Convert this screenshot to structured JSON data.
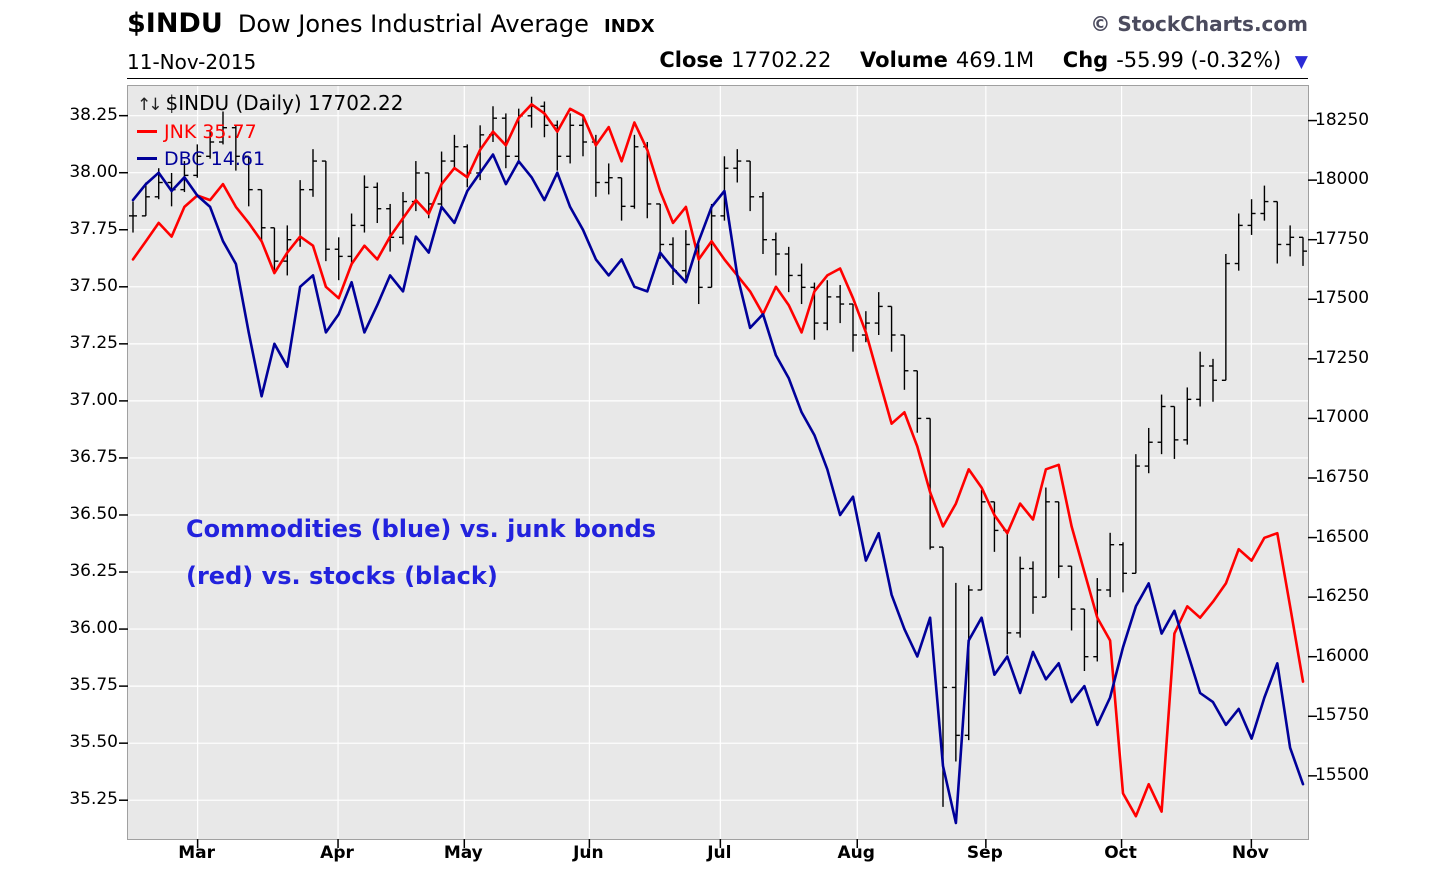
{
  "header": {
    "symbol": "$INDU",
    "name": "Dow Jones Industrial Average",
    "exchange": "INDX",
    "watermark": "© StockCharts.com",
    "date": "11-Nov-2015",
    "close_label": "Close",
    "close_value": "17702.22",
    "volume_label": "Volume",
    "volume_value": "469.1M",
    "chg_label": "Chg",
    "chg_value": "-55.99 (-0.32%)",
    "chg_direction": "down"
  },
  "legend": {
    "scale_icon": "↑↓",
    "main": "$INDU (Daily) 17702.22",
    "items": [
      {
        "label": "JNK 35.77",
        "color": "#ff0000"
      },
      {
        "label": "DBC 14.61",
        "color": "#000099"
      }
    ]
  },
  "annotation": {
    "line1": "Commodities (blue) vs. junk bonds",
    "line2": "(red) vs. stocks (black)",
    "color": "#2222dd"
  },
  "colors": {
    "indu_bars": "#000000",
    "jnk_line": "#ff0000",
    "dbc_line": "#000099",
    "plot_background": "#e8e8e8",
    "gridline": "#ffffff",
    "chg_arrow": "#2b2bd6"
  },
  "chart_data": {
    "type": "mixed",
    "title": "$INDU (Daily) — Dow Jones Industrial Average with JNK and DBC overlays",
    "grid": true,
    "x_axis": {
      "labels": [
        "Mar",
        "Apr",
        "May",
        "Jun",
        "Jul",
        "Aug",
        "Sep",
        "Oct",
        "Nov"
      ],
      "fractions": [
        0.059,
        0.178,
        0.285,
        0.391,
        0.502,
        0.618,
        0.727,
        0.842,
        0.952
      ]
    },
    "left_axis": {
      "ticks": [
        38.25,
        38.0,
        37.75,
        37.5,
        37.25,
        37.0,
        36.75,
        36.5,
        36.25,
        36.0,
        35.75,
        35.5,
        35.25
      ],
      "range": [
        35.08,
        38.38
      ],
      "series": [
        "JNK",
        "DBC"
      ]
    },
    "right_axis": {
      "ticks": [
        18250,
        18000,
        17750,
        17500,
        17250,
        17000,
        16750,
        16500,
        16250,
        16000,
        15750,
        15500
      ],
      "range": [
        15235,
        18395
      ],
      "series": [
        "$INDU"
      ]
    },
    "series": [
      {
        "name": "$INDU",
        "type": "ohlc",
        "axis": "right",
        "color": "#000000",
        "note": "bars are [high, low, close]; open drawn as prior close",
        "bars": [
          [
            17910,
            17780,
            17850
          ],
          [
            17990,
            17870,
            17930
          ],
          [
            18050,
            17920,
            17990
          ],
          [
            18030,
            17890,
            17960
          ],
          [
            18080,
            17950,
            18020
          ],
          [
            18150,
            18010,
            18100
          ],
          [
            18210,
            18090,
            18160
          ],
          [
            18288,
            18150,
            18220
          ],
          [
            18230,
            18040,
            18100
          ],
          [
            18050,
            17890,
            17960
          ],
          [
            17950,
            17740,
            17800
          ],
          [
            17790,
            17620,
            17660
          ],
          [
            17810,
            17600,
            17750
          ],
          [
            18000,
            17720,
            17960
          ],
          [
            18130,
            17930,
            18080
          ],
          [
            18050,
            17660,
            17710
          ],
          [
            17760,
            17580,
            17680
          ],
          [
            17860,
            17640,
            17810
          ],
          [
            18020,
            17780,
            17970
          ],
          [
            17990,
            17820,
            17880
          ],
          [
            17900,
            17700,
            17760
          ],
          [
            17950,
            17730,
            17910
          ],
          [
            18080,
            17870,
            18030
          ],
          [
            18000,
            17840,
            17900
          ],
          [
            18120,
            17880,
            18080
          ],
          [
            18190,
            18050,
            18140
          ],
          [
            18150,
            17970,
            18030
          ],
          [
            18230,
            18000,
            18190
          ],
          [
            18310,
            18160,
            18260
          ],
          [
            18280,
            18050,
            18100
          ],
          [
            18300,
            18080,
            18270
          ],
          [
            18350,
            18220,
            18310
          ],
          [
            18330,
            18180,
            18230
          ],
          [
            18250,
            18040,
            18100
          ],
          [
            18280,
            18070,
            18230
          ],
          [
            18270,
            18100,
            18160
          ],
          [
            18190,
            17930,
            17990
          ],
          [
            18070,
            17940,
            18010
          ],
          [
            18000,
            17830,
            17890
          ],
          [
            18190,
            17880,
            18140
          ],
          [
            18160,
            17840,
            17900
          ],
          [
            17880,
            17670,
            17730
          ],
          [
            17760,
            17560,
            17620
          ],
          [
            17790,
            17580,
            17730
          ],
          [
            17700,
            17480,
            17550
          ],
          [
            17900,
            17580,
            17850
          ],
          [
            18100,
            17830,
            18050
          ],
          [
            18130,
            17990,
            18080
          ],
          [
            18050,
            17870,
            17930
          ],
          [
            17950,
            17690,
            17750
          ],
          [
            17780,
            17600,
            17690
          ],
          [
            17720,
            17530,
            17600
          ],
          [
            17650,
            17480,
            17550
          ],
          [
            17570,
            17330,
            17400
          ],
          [
            17580,
            17370,
            17510
          ],
          [
            17560,
            17400,
            17480
          ],
          [
            17480,
            17280,
            17350
          ],
          [
            17450,
            17320,
            17400
          ],
          [
            17530,
            17350,
            17470
          ],
          [
            17440,
            17280,
            17350
          ],
          [
            17310,
            17120,
            17200
          ],
          [
            17180,
            16940,
            17000
          ],
          [
            16990,
            16450,
            16460
          ],
          [
            16100,
            15370,
            15871
          ],
          [
            16310,
            15560,
            15670
          ],
          [
            16300,
            15650,
            16280
          ],
          [
            16700,
            16300,
            16650
          ],
          [
            16640,
            16440,
            16530
          ],
          [
            16480,
            16010,
            16100
          ],
          [
            16420,
            16080,
            16370
          ],
          [
            16400,
            16180,
            16250
          ],
          [
            16710,
            16280,
            16650
          ],
          [
            16620,
            16330,
            16380
          ],
          [
            16330,
            16110,
            16200
          ],
          [
            16180,
            15940,
            16000
          ],
          [
            16330,
            15980,
            16280
          ],
          [
            16520,
            16250,
            16470
          ],
          [
            16480,
            16270,
            16350
          ],
          [
            16850,
            16380,
            16800
          ],
          [
            16960,
            16770,
            16900
          ],
          [
            17100,
            16850,
            17050
          ],
          [
            17030,
            16830,
            16910
          ],
          [
            17130,
            16890,
            17080
          ],
          [
            17280,
            17050,
            17220
          ],
          [
            17250,
            17070,
            17160
          ],
          [
            17690,
            17180,
            17650
          ],
          [
            17860,
            17620,
            17810
          ],
          [
            17920,
            17770,
            17860
          ],
          [
            17977,
            17830,
            17910
          ],
          [
            17810,
            17650,
            17730
          ],
          [
            17810,
            17680,
            17760
          ],
          [
            17758,
            17640,
            17702
          ]
        ]
      },
      {
        "name": "JNK",
        "type": "line",
        "axis": "left",
        "color": "#ff0000",
        "last_value": 35.77,
        "values": [
          37.62,
          37.7,
          37.78,
          37.72,
          37.85,
          37.9,
          37.88,
          37.95,
          37.85,
          37.78,
          37.7,
          37.56,
          37.65,
          37.72,
          37.68,
          37.5,
          37.45,
          37.6,
          37.68,
          37.62,
          37.72,
          37.8,
          37.88,
          37.82,
          37.95,
          38.02,
          37.98,
          38.1,
          38.18,
          38.12,
          38.24,
          38.3,
          38.26,
          38.18,
          38.28,
          38.25,
          38.12,
          38.2,
          38.05,
          38.22,
          38.1,
          37.92,
          37.78,
          37.85,
          37.62,
          37.7,
          37.62,
          37.55,
          37.48,
          37.38,
          37.5,
          37.42,
          37.3,
          37.48,
          37.55,
          37.58,
          37.45,
          37.3,
          37.1,
          36.9,
          36.95,
          36.8,
          36.6,
          36.45,
          36.55,
          36.7,
          36.62,
          36.5,
          36.42,
          36.55,
          36.48,
          36.7,
          36.72,
          36.45,
          36.25,
          36.05,
          35.95,
          35.28,
          35.18,
          35.32,
          35.2,
          35.98,
          36.1,
          36.05,
          36.12,
          36.2,
          36.35,
          36.3,
          36.4,
          36.42,
          36.1,
          35.77
        ]
      },
      {
        "name": "DBC",
        "type": "line",
        "axis": "left",
        "color": "#000099",
        "last_value": 14.61,
        "values": [
          37.88,
          37.95,
          38.0,
          37.92,
          37.98,
          37.9,
          37.85,
          37.7,
          37.6,
          37.3,
          37.02,
          37.25,
          37.15,
          37.5,
          37.55,
          37.3,
          37.38,
          37.52,
          37.3,
          37.42,
          37.55,
          37.48,
          37.72,
          37.65,
          37.85,
          37.78,
          37.92,
          38.0,
          38.08,
          37.95,
          38.05,
          37.98,
          37.88,
          38.0,
          37.85,
          37.75,
          37.62,
          37.55,
          37.62,
          37.5,
          37.48,
          37.65,
          37.58,
          37.52,
          37.7,
          37.85,
          37.92,
          37.55,
          37.32,
          37.38,
          37.2,
          37.1,
          36.95,
          36.85,
          36.7,
          36.5,
          36.58,
          36.3,
          36.42,
          36.15,
          36.0,
          35.88,
          36.05,
          35.4,
          35.15,
          35.95,
          36.05,
          35.8,
          35.88,
          35.72,
          35.9,
          35.78,
          35.85,
          35.68,
          35.75,
          35.58,
          35.7,
          35.92,
          36.1,
          36.2,
          35.98,
          36.08,
          35.9,
          35.72,
          35.68,
          35.58,
          35.65,
          35.52,
          35.7,
          35.85,
          35.48,
          35.32
        ]
      }
    ]
  }
}
